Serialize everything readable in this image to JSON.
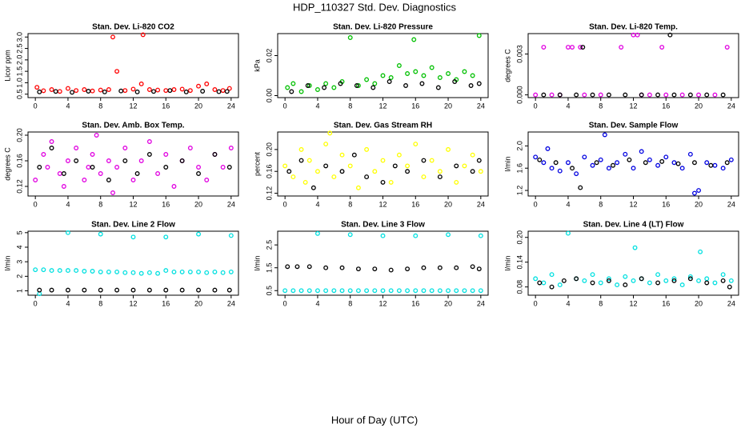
{
  "page": {
    "title": "HDP_110327  Std. Dev. Diagnostics",
    "x_label": "Hour of Day (UTC)"
  },
  "chart_data": [
    {
      "type": "scatter",
      "title": "Stan. Dev. Li-820 CO2",
      "y_label": "Licor ppm",
      "xlim": [
        -0.9,
        24.9
      ],
      "xticks": [
        0,
        4,
        8,
        12,
        16,
        20,
        24
      ],
      "ylim": [
        0.35,
        3.15
      ],
      "yticks": [
        0.5,
        {
          "value": 1,
          "label": "1.0"
        },
        1.5,
        {
          "value": 2,
          "label": "2.0"
        },
        2.5,
        {
          "value": 3,
          "label": "3.0"
        }
      ],
      "series": [
        {
          "color": "#ff0000",
          "x": [
            0.2,
            1,
            2,
            3,
            4,
            5,
            6,
            7,
            8,
            9,
            9.5,
            10,
            11,
            12,
            13,
            13.2,
            14,
            15,
            16,
            17,
            18,
            19,
            20,
            21,
            22,
            23,
            23.8
          ],
          "values": [
            0.8,
            0.65,
            0.7,
            0.62,
            0.75,
            0.66,
            0.7,
            0.64,
            0.68,
            0.7,
            3.0,
            1.5,
            0.66,
            0.72,
            0.95,
            3.1,
            0.7,
            0.68,
            0.66,
            0.7,
            0.72,
            0.66,
            0.85,
            0.95,
            0.7,
            0.66,
            0.75
          ]
        },
        {
          "color": "#000000",
          "x": [
            0.5,
            2.5,
            4.5,
            6.5,
            8.5,
            10.5,
            12.5,
            14.5,
            16.5,
            18.5,
            20.5,
            22.5,
            23.5
          ],
          "values": [
            0.6,
            0.62,
            0.58,
            0.63,
            0.6,
            0.64,
            0.6,
            0.62,
            0.66,
            0.6,
            0.63,
            0.61,
            0.62
          ]
        }
      ]
    },
    {
      "type": "scatter",
      "title": "Stan. Dev. Li-820 Pressure",
      "y_label": "kPa",
      "xlim": [
        -0.9,
        24.9
      ],
      "xticks": [
        0,
        4,
        8,
        12,
        16,
        20,
        24
      ],
      "ylim": [
        -0.001,
        0.031
      ],
      "yticks": [
        {
          "value": 0,
          "label": "0.00"
        },
        {
          "value": 0.02,
          "label": "0.02"
        }
      ],
      "series": [
        {
          "color": "#00c000",
          "x": [
            0.3,
            1,
            2,
            3,
            4,
            5,
            6,
            7,
            8,
            9,
            10,
            11,
            12,
            13,
            14,
            15,
            15.8,
            16,
            17,
            18,
            19,
            20,
            21,
            22,
            23,
            23.8
          ],
          "values": [
            0.004,
            0.006,
            0.002,
            0.005,
            0.003,
            0.006,
            0.004,
            0.007,
            0.029,
            0.005,
            0.008,
            0.006,
            0.01,
            0.009,
            0.015,
            0.011,
            0.028,
            0.012,
            0.01,
            0.014,
            0.009,
            0.011,
            0.008,
            0.012,
            0.01,
            0.03
          ]
        },
        {
          "color": "#000000",
          "x": [
            0.8,
            2.8,
            4.8,
            6.8,
            8.8,
            10.8,
            12.8,
            14.8,
            16.8,
            18.8,
            20.8,
            22.8,
            23.8
          ],
          "values": [
            0.002,
            0.005,
            0.004,
            0.006,
            0.005,
            0.004,
            0.007,
            0.005,
            0.006,
            0.004,
            0.007,
            0.005,
            0.006
          ]
        }
      ]
    },
    {
      "type": "scatter",
      "title": "Stan. Dev. Li-820 Temp.",
      "y_label": "degrees C",
      "xlim": [
        -0.9,
        24.9
      ],
      "xticks": [
        0,
        4,
        8,
        12,
        16,
        20,
        24
      ],
      "ylim": [
        -0.0002,
        0.0045
      ],
      "yticks": [
        {
          "value": 0,
          "label": "0.000"
        },
        {
          "value": 0.003,
          "label": "0.003"
        }
      ],
      "series": [
        {
          "color": "#e000e0",
          "x": [
            0,
            1,
            2,
            3,
            4,
            4.5,
            5.5,
            6,
            8,
            10.5,
            12,
            12.5,
            13,
            14,
            15.5,
            16,
            18,
            20,
            22,
            23.5
          ],
          "values": [
            0,
            0.0035,
            0,
            0,
            0.0035,
            0.0035,
            0.0035,
            0,
            0,
            0.0035,
            0.0044,
            0.0044,
            0,
            0,
            0.0035,
            0,
            0,
            0,
            0,
            0.0035
          ]
        },
        {
          "color": "#000000",
          "x": [
            1,
            3,
            5,
            5.8,
            7,
            9,
            11,
            13,
            15,
            16.5,
            17,
            19,
            21,
            23
          ],
          "values": [
            0,
            0,
            0,
            0.0035,
            0,
            0,
            0,
            0,
            0,
            0.0044,
            0,
            0,
            0,
            0
          ]
        }
      ]
    },
    {
      "type": "scatter",
      "title": "Stan. Dev. Amb. Box Temp.",
      "y_label": "degrees C",
      "xlim": [
        -0.9,
        24.9
      ],
      "xticks": [
        0,
        4,
        8,
        12,
        16,
        20,
        24
      ],
      "ylim": [
        0.105,
        0.205
      ],
      "yticks": [
        0.12,
        0.16,
        {
          "value": 0.2,
          "label": "0.20"
        }
      ],
      "series": [
        {
          "color": "#e000e0",
          "x": [
            0,
            1,
            1.5,
            2,
            3,
            3.5,
            4,
            5,
            6,
            6.5,
            7,
            7.5,
            8,
            9,
            9.5,
            10,
            11,
            12,
            13,
            14,
            15,
            16,
            17,
            18,
            19,
            20,
            21,
            22,
            23,
            24
          ],
          "values": [
            0.13,
            0.17,
            0.15,
            0.19,
            0.14,
            0.12,
            0.16,
            0.18,
            0.13,
            0.15,
            0.17,
            0.2,
            0.14,
            0.16,
            0.11,
            0.15,
            0.18,
            0.13,
            0.16,
            0.19,
            0.14,
            0.17,
            0.12,
            0.16,
            0.18,
            0.15,
            0.13,
            0.17,
            0.15,
            0.18
          ]
        },
        {
          "color": "#000000",
          "x": [
            0.5,
            2,
            3.5,
            5,
            7,
            9,
            11,
            12.5,
            14,
            16,
            18,
            20,
            22,
            23.8
          ],
          "values": [
            0.15,
            0.18,
            0.14,
            0.16,
            0.15,
            0.13,
            0.16,
            0.14,
            0.17,
            0.15,
            0.16,
            0.14,
            0.17,
            0.15
          ]
        }
      ]
    },
    {
      "type": "scatter",
      "title": "Stan. Dev. Gas Stream RH",
      "y_label": "percent",
      "xlim": [
        -0.9,
        24.9
      ],
      "xticks": [
        0,
        4,
        8,
        12,
        16,
        20,
        24
      ],
      "ylim": [
        0.115,
        0.232
      ],
      "yticks": [
        0.12,
        0.16,
        {
          "value": 0.2,
          "label": "0.20"
        }
      ],
      "series": [
        {
          "color": "#ffff00",
          "x": [
            0,
            1,
            2,
            2.5,
            3,
            4,
            5,
            5.5,
            6,
            7,
            8,
            9,
            10,
            11,
            12,
            13,
            14,
            15,
            16,
            17,
            18,
            19,
            20,
            21,
            22,
            23,
            24
          ],
          "values": [
            0.17,
            0.15,
            0.2,
            0.14,
            0.18,
            0.16,
            0.21,
            0.23,
            0.15,
            0.19,
            0.17,
            0.13,
            0.2,
            0.16,
            0.18,
            0.14,
            0.19,
            0.17,
            0.21,
            0.15,
            0.18,
            0.16,
            0.2,
            0.14,
            0.17,
            0.19,
            0.16
          ]
        },
        {
          "color": "#000000",
          "x": [
            0.5,
            2,
            3.5,
            5,
            7,
            8.5,
            10,
            12,
            13.5,
            15,
            17,
            19,
            21,
            23,
            23.8
          ],
          "values": [
            0.16,
            0.18,
            0.13,
            0.17,
            0.16,
            0.19,
            0.15,
            0.14,
            0.17,
            0.16,
            0.18,
            0.15,
            0.17,
            0.16,
            0.18
          ]
        }
      ]
    },
    {
      "type": "scatter",
      "title": "Stan. Dev. Sample Flow",
      "y_label": "l/min",
      "xlim": [
        -0.9,
        24.9
      ],
      "xticks": [
        0,
        4,
        8,
        12,
        16,
        20,
        24
      ],
      "ylim": [
        1.1,
        2.25
      ],
      "yticks": [
        1.2,
        1.6,
        {
          "value": 2,
          "label": "2.0"
        }
      ],
      "series": [
        {
          "color": "#0000e0",
          "x": [
            0,
            1,
            1.5,
            2,
            3,
            4,
            5,
            6,
            7,
            8,
            8.5,
            9,
            10,
            11,
            12,
            13,
            14,
            15,
            16,
            17,
            18,
            19,
            19.5,
            20,
            21,
            22,
            23,
            24
          ],
          "values": [
            1.8,
            1.7,
            1.95,
            1.6,
            1.55,
            1.7,
            1.5,
            1.8,
            1.65,
            1.75,
            2.2,
            1.6,
            1.7,
            1.85,
            1.6,
            1.9,
            1.75,
            1.65,
            1.8,
            1.7,
            1.6,
            1.85,
            1.15,
            1.2,
            1.7,
            1.65,
            1.6,
            1.75
          ]
        },
        {
          "color": "#000000",
          "x": [
            0.5,
            2.5,
            4.5,
            5.5,
            7.5,
            9.5,
            11.5,
            13.5,
            15.5,
            17.5,
            19.5,
            21.5,
            23.5
          ],
          "values": [
            1.75,
            1.7,
            1.6,
            1.25,
            1.7,
            1.65,
            1.75,
            1.7,
            1.72,
            1.68,
            1.7,
            1.65,
            1.7
          ]
        }
      ]
    },
    {
      "type": "scatter",
      "title": "Stan. Dev. Line 2 Flow",
      "y_label": "l/min",
      "xlim": [
        -0.9,
        24.9
      ],
      "xticks": [
        0,
        4,
        8,
        12,
        16,
        20,
        24
      ],
      "ylim": [
        0.7,
        5.1
      ],
      "yticks": [
        1,
        2,
        3,
        4,
        5
      ],
      "series": [
        {
          "color": "#00e0e0",
          "x": [
            0,
            1,
            2,
            3,
            4,
            5,
            6,
            7,
            8,
            9,
            10,
            11,
            12,
            13,
            14,
            15,
            16,
            17,
            18,
            19,
            20,
            21,
            22,
            23,
            24,
            0.5,
            4,
            8,
            12,
            16,
            20,
            24
          ],
          "values": [
            2.45,
            2.45,
            2.4,
            2.4,
            2.4,
            2.4,
            2.35,
            2.35,
            2.3,
            2.3,
            2.3,
            2.25,
            2.25,
            2.2,
            2.25,
            2.2,
            2.4,
            2.3,
            2.3,
            2.3,
            2.3,
            2.25,
            2.3,
            2.25,
            2.3,
            0.8,
            5,
            4.9,
            4.7,
            4.7,
            4.9,
            4.8
          ]
        },
        {
          "color": "#000000",
          "x": [
            0.5,
            2,
            4,
            6,
            8,
            10,
            12,
            14,
            16,
            18,
            20,
            22,
            23.8
          ],
          "values": [
            1.05,
            1.05,
            1.05,
            1.05,
            1.05,
            1.05,
            1.05,
            1.05,
            1.05,
            1.05,
            1.05,
            1.05,
            1.05
          ]
        }
      ]
    },
    {
      "type": "scatter",
      "title": "Stan. Dev. Line 3 Flow",
      "y_label": "l/min",
      "xlim": [
        -0.9,
        24.9
      ],
      "xticks": [
        0,
        4,
        8,
        12,
        16,
        20,
        24
      ],
      "ylim": [
        0.3,
        3.1
      ],
      "yticks": [
        0.5,
        1.5,
        2.5
      ],
      "series": [
        {
          "color": "#00e0e0",
          "x": [
            0,
            1,
            2,
            3,
            4,
            5,
            6,
            7,
            8,
            9,
            10,
            11,
            12,
            13,
            14,
            15,
            16,
            17,
            18,
            19,
            20,
            21,
            22,
            23,
            24,
            4,
            8,
            12,
            16,
            20,
            24
          ],
          "values": [
            0.5,
            0.5,
            0.5,
            0.5,
            0.5,
            0.5,
            0.5,
            0.5,
            0.5,
            0.5,
            0.5,
            0.5,
            0.5,
            0.5,
            0.5,
            0.5,
            0.5,
            0.5,
            0.5,
            0.5,
            0.5,
            0.5,
            0.5,
            0.5,
            0.5,
            3,
            2.95,
            2.9,
            2.9,
            2.95,
            2.9
          ]
        },
        {
          "color": "#000000",
          "x": [
            0.3,
            1.5,
            3,
            5,
            7,
            9,
            11,
            13,
            15,
            17,
            19,
            21,
            23,
            23.8
          ],
          "values": [
            1.55,
            1.55,
            1.55,
            1.5,
            1.5,
            1.45,
            1.45,
            1.4,
            1.45,
            1.5,
            1.5,
            1.5,
            1.55,
            1.45
          ]
        }
      ]
    },
    {
      "type": "scatter",
      "title": "Stan. Dev. Line 4 (LT) Flow",
      "y_label": "l/min",
      "xlim": [
        -0.9,
        24.9
      ],
      "xticks": [
        0,
        4,
        8,
        12,
        16,
        20,
        24
      ],
      "ylim": [
        0.06,
        0.215
      ],
      "yticks": [
        0.08,
        0.14,
        {
          "value": 0.2,
          "label": "0.20"
        }
      ],
      "series": [
        {
          "color": "#00e0e0",
          "x": [
            0,
            1,
            2,
            3,
            4,
            5,
            6,
            7,
            8,
            9,
            10,
            11,
            12,
            12.2,
            13,
            14,
            15,
            16,
            17,
            18,
            19,
            20,
            20.2,
            21,
            22,
            23,
            24
          ],
          "values": [
            0.1,
            0.09,
            0.11,
            0.085,
            0.21,
            0.1,
            0.095,
            0.11,
            0.09,
            0.1,
            0.085,
            0.105,
            0.095,
            0.175,
            0.1,
            0.09,
            0.11,
            0.095,
            0.1,
            0.085,
            0.105,
            0.095,
            0.165,
            0.1,
            0.09,
            0.11,
            0.095
          ]
        },
        {
          "color": "#000000",
          "x": [
            0.5,
            2,
            3.5,
            5,
            7,
            9,
            11,
            13,
            15,
            17,
            19,
            21,
            23,
            23.8
          ],
          "values": [
            0.09,
            0.08,
            0.095,
            0.1,
            0.09,
            0.095,
            0.085,
            0.1,
            0.09,
            0.095,
            0.1,
            0.09,
            0.095,
            0.08
          ]
        }
      ]
    }
  ]
}
